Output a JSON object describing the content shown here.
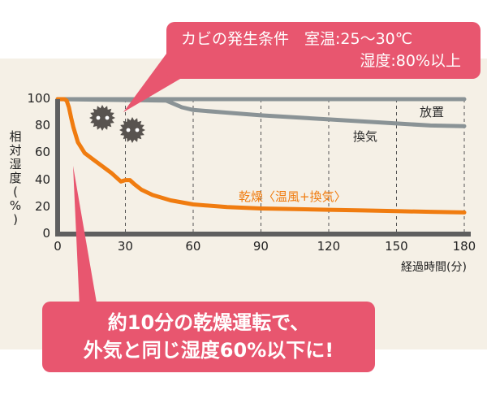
{
  "callouts": {
    "top": {
      "line1": "カビの発生条件　室温:25〜30℃",
      "line2": "湿度:80%以上"
    },
    "bottom": {
      "line1": "約10分の乾燥運転で、",
      "line2": "外気と同じ湿度60%以下に!"
    }
  },
  "icons": [
    "mold-spore-icon",
    "mold-spore-icon"
  ],
  "colors": {
    "background_band": "#f5f0e6",
    "callout": "#e8566f",
    "dry_line": "#f07c10",
    "gray_lines": "#8a9396",
    "axis": "#5f5f5f",
    "mold": "#58534f"
  },
  "chart_data": {
    "type": "line",
    "title": "",
    "xlabel": "経過時間(分)",
    "ylabel": "相対湿度(%)",
    "xlim": [
      0,
      180
    ],
    "ylim": [
      0,
      100
    ],
    "x_ticks": [
      0,
      30,
      60,
      90,
      120,
      150,
      180
    ],
    "y_ticks": [
      0,
      20,
      40,
      60,
      80,
      100
    ],
    "grid": "vertical dashed lines at 30-minute intervals",
    "series": [
      {
        "name": "放置",
        "color": "#8a9396",
        "points": [
          [
            0,
            100
          ],
          [
            180,
            100
          ]
        ]
      },
      {
        "name": "換気",
        "color": "#8a9396",
        "points": [
          [
            0,
            100
          ],
          [
            48,
            99
          ],
          [
            55,
            94
          ],
          [
            60,
            92
          ],
          [
            75,
            90
          ],
          [
            90,
            88
          ],
          [
            105,
            86.5
          ],
          [
            120,
            85
          ],
          [
            135,
            83.5
          ],
          [
            150,
            82
          ],
          [
            165,
            80.5
          ],
          [
            180,
            80
          ]
        ]
      },
      {
        "name": "乾燥〈温風+換気〉",
        "color": "#f07c10",
        "points": [
          [
            0,
            100
          ],
          [
            3,
            100
          ],
          [
            4,
            99
          ],
          [
            5,
            94
          ],
          [
            6,
            86
          ],
          [
            7,
            79
          ],
          [
            9,
            68
          ],
          [
            12,
            60
          ],
          [
            16,
            55
          ],
          [
            20,
            50
          ],
          [
            24,
            45
          ],
          [
            28,
            39
          ],
          [
            30,
            40
          ],
          [
            32,
            40
          ],
          [
            34,
            37
          ],
          [
            37,
            33
          ],
          [
            42,
            29
          ],
          [
            50,
            25
          ],
          [
            60,
            22
          ],
          [
            75,
            20
          ],
          [
            90,
            19
          ],
          [
            105,
            18.5
          ],
          [
            120,
            18
          ],
          [
            135,
            17.5
          ],
          [
            150,
            17
          ],
          [
            165,
            16.5
          ],
          [
            180,
            16
          ]
        ]
      }
    ],
    "series_labels": {
      "left_over": "放置",
      "ventilation": "換気",
      "dry": "乾燥〈温風+換気〉"
    },
    "ylabel_chars": [
      "相",
      "対",
      "湿",
      "度",
      "(",
      "%",
      ")"
    ]
  }
}
